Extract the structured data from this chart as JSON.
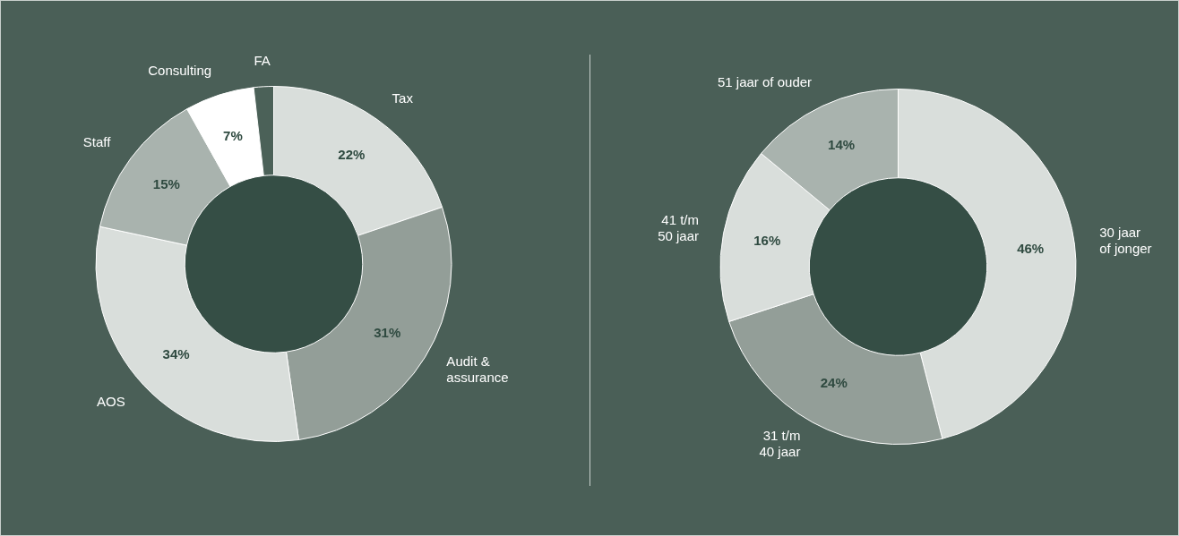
{
  "chart_data": [
    {
      "type": "donut",
      "categories": [
        "Tax",
        "Audit &\nassurance",
        "AOS",
        "Staff",
        "Consulting",
        "FA"
      ],
      "values": [
        22,
        31,
        34,
        15,
        7,
        2
      ],
      "colors": [
        "#d9dedb",
        "#939e98",
        "#d9dedb",
        "#a9b3ae",
        "#ffffff",
        "#4b6158"
      ],
      "value_labels": [
        "22%",
        "31%",
        "34%",
        "15%",
        "7%",
        null
      ]
    },
    {
      "type": "donut",
      "categories": [
        "30 jaar\nof jonger",
        "31 t/m\n40 jaar",
        "41 t/m\n50 jaar",
        "51 jaar of ouder"
      ],
      "values": [
        46,
        24,
        16,
        14
      ],
      "colors": [
        "#d9dedb",
        "#939e98",
        "#d9dedb",
        "#a9b3ae"
      ],
      "value_labels": [
        "46%",
        "24%",
        "16%",
        "14%"
      ]
    }
  ]
}
